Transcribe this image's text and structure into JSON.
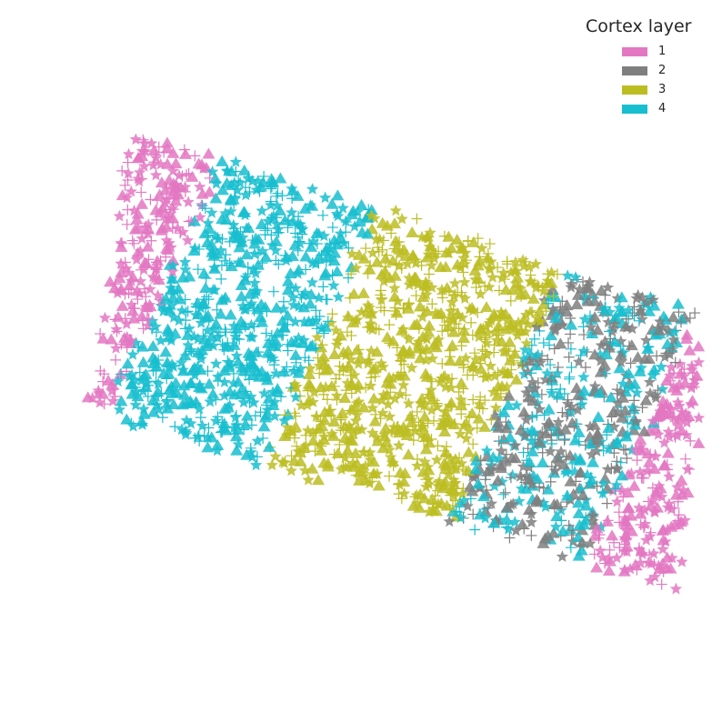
{
  "chart_data": {
    "type": "scatter",
    "title": "",
    "xlabel": "",
    "ylabel": "",
    "grid": false,
    "axes_visible": false,
    "legend": {
      "title": "Cortex layer",
      "placement": "top-right",
      "entries": [
        {
          "label": "1",
          "color": "#e377c2"
        },
        {
          "label": "2",
          "color": "#7f7f7f"
        },
        {
          "label": "3",
          "color": "#bcbd22"
        },
        {
          "label": "4",
          "color": "#17becf"
        }
      ]
    },
    "marker_types": [
      "triangle",
      "star",
      "plus"
    ],
    "approx_point_count": 3000
  }
}
